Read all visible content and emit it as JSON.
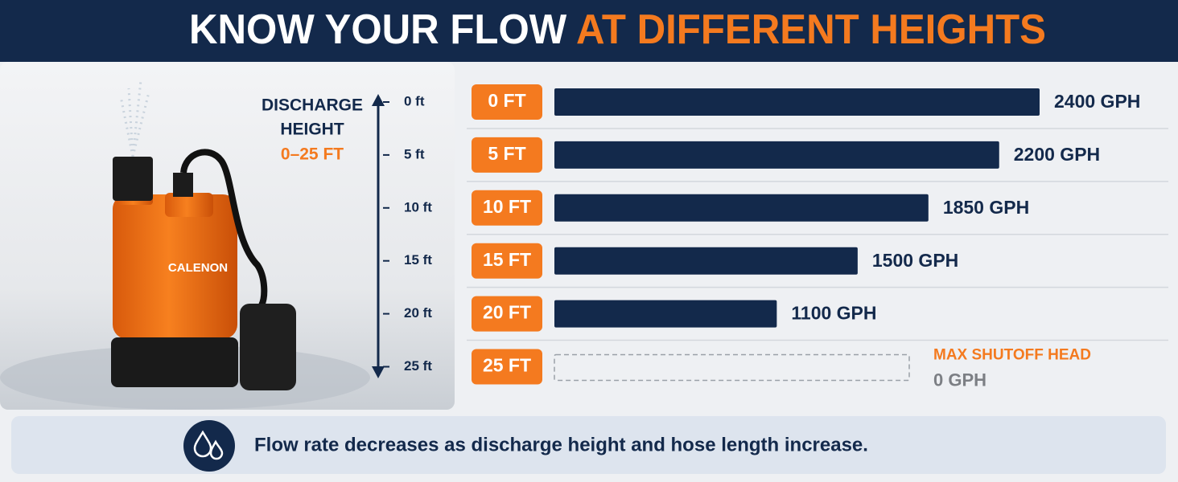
{
  "chart_data": {
    "type": "bar",
    "orientation": "horizontal",
    "title": "KNOW YOUR FLOW",
    "title_highlight": "AT DIFFERENT HEIGHTS",
    "y_axis_title": [
      "DISCHARGE",
      "HEIGHT"
    ],
    "y_axis_range": "0–25 FT",
    "y_axis_ticks": [
      "0 ft",
      "5 ft",
      "10 ft",
      "15 ft",
      "20 ft",
      "25 ft"
    ],
    "categories": [
      "0 FT",
      "5 FT",
      "10 FT",
      "15 FT",
      "20 FT",
      "25 FT"
    ],
    "values": [
      2400,
      2200,
      1850,
      1500,
      1100,
      0
    ],
    "value_labels": [
      "2400 GPH",
      "2200 GPH",
      "1850 GPH",
      "1500 GPH",
      "1100 GPH",
      "0 GPH"
    ],
    "xlim": [
      0,
      2400
    ],
    "color": "#13294b",
    "category_color": "#f47a1f",
    "annotation": "MAX SHUTOFF HEAD",
    "footnote": "Flow rate decreases as discharge height and hose length increase.",
    "product_label": "CALENON"
  }
}
